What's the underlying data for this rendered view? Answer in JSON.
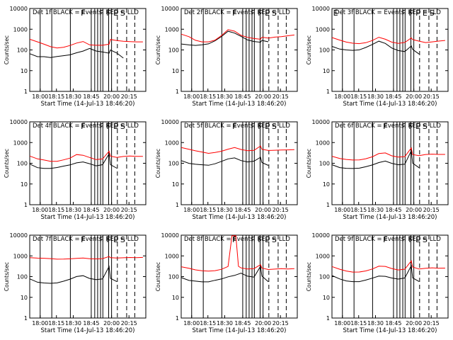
{
  "figure": {
    "ylabel": "Counts/sec",
    "start_time_label": "Start Time (14-Jul-13 18:46:20)",
    "x_ticks": [
      "18:00",
      "18:15",
      "18:30",
      "18:45",
      "20:00",
      "20:15"
    ],
    "y_ticks": [
      "1",
      "10",
      "100",
      "1000",
      "10000"
    ],
    "colors": {
      "events": "#000000",
      "lld": "#ff0000",
      "background": "#ffffff"
    }
  },
  "chart_data": [
    {
      "type": "line",
      "title": "Det 1f BLACK = Events, RED = LLD",
      "flags": [
        "F",
        "F",
        "F",
        "E",
        "S"
      ],
      "yscale": "log",
      "ylim": [
        1,
        10000
      ],
      "x_ticks": [
        "18:00",
        "18:15",
        "18:30",
        "18:45",
        "20:00",
        "20:15"
      ],
      "series": [
        {
          "color": "#000000",
          "x": [
            "17:54",
            "18:00",
            "18:05",
            "18:10",
            "18:15",
            "18:20",
            "18:25",
            "18:30",
            "18:35",
            "18:40",
            "18:45",
            "18:50",
            "18:55",
            "19:58",
            "20:03",
            "20:08"
          ],
          "values": [
            70,
            50,
            50,
            45,
            50,
            55,
            60,
            75,
            90,
            120,
            90,
            80,
            70,
            100,
            70,
            40
          ]
        },
        {
          "color": "#ff0000",
          "x": [
            "17:54",
            "18:00",
            "18:05",
            "18:10",
            "18:15",
            "18:20",
            "18:25",
            "18:30",
            "18:35",
            "18:40",
            "18:45",
            "18:50",
            "18:55",
            "19:58",
            "20:03",
            "20:08",
            "20:13",
            "20:18",
            "20:23"
          ],
          "values": [
            350,
            260,
            200,
            150,
            130,
            140,
            170,
            220,
            260,
            180,
            170,
            170,
            190,
            320,
            280,
            260,
            250,
            240,
            240
          ]
        }
      ]
    },
    {
      "type": "line",
      "title": "Det 2f BLACK = Events, RED = LLD",
      "flags": [
        "F",
        "F",
        "F",
        "E",
        "S"
      ],
      "yscale": "log",
      "ylim": [
        1,
        10000
      ],
      "x_ticks": [
        "18:00",
        "18:15",
        "18:30",
        "18:45",
        "20:00",
        "20:15"
      ],
      "series": [
        {
          "color": "#000000",
          "x": [
            "17:54",
            "18:00",
            "18:05",
            "18:10",
            "18:15",
            "18:20",
            "18:25",
            "18:30",
            "18:35",
            "18:40",
            "18:45",
            "18:50",
            "18:55",
            "19:58",
            "20:03"
          ],
          "values": [
            200,
            180,
            170,
            180,
            200,
            280,
            450,
            800,
            650,
            450,
            300,
            250,
            230,
            280,
            240
          ]
        },
        {
          "color": "#ff0000",
          "x": [
            "17:54",
            "18:00",
            "18:05",
            "18:10",
            "18:15",
            "18:20",
            "18:25",
            "18:30",
            "18:35",
            "18:40",
            "18:45",
            "18:50",
            "18:55",
            "19:58",
            "20:03",
            "20:08",
            "20:13",
            "20:18",
            "20:23"
          ],
          "values": [
            600,
            450,
            300,
            250,
            250,
            300,
            500,
            950,
            800,
            500,
            400,
            350,
            320,
            400,
            360,
            400,
            420,
            460,
            500
          ]
        }
      ]
    },
    {
      "type": "line",
      "title": "Det 3f BLACK = Events, RED = LLD",
      "flags": [
        "E",
        "F",
        "F",
        "F",
        "E",
        "S"
      ],
      "yscale": "log",
      "ylim": [
        1,
        10000
      ],
      "x_ticks": [
        "18:00",
        "18:15",
        "18:30",
        "18:45",
        "20:00",
        "20:15"
      ],
      "series": [
        {
          "color": "#000000",
          "x": [
            "17:54",
            "18:00",
            "18:05",
            "18:10",
            "18:15",
            "18:20",
            "18:25",
            "18:30",
            "18:35",
            "18:40",
            "18:45",
            "18:50",
            "18:55",
            "19:58",
            "20:03"
          ],
          "values": [
            150,
            110,
            100,
            95,
            100,
            130,
            180,
            260,
            200,
            120,
            90,
            80,
            150,
            100,
            60
          ]
        },
        {
          "color": "#ff0000",
          "x": [
            "17:54",
            "18:00",
            "18:05",
            "18:10",
            "18:15",
            "18:20",
            "18:25",
            "18:30",
            "18:35",
            "18:40",
            "18:45",
            "18:50",
            "18:55",
            "19:58",
            "20:03",
            "20:08",
            "20:13",
            "20:18",
            "20:23"
          ],
          "values": [
            400,
            300,
            240,
            210,
            200,
            220,
            280,
            400,
            320,
            230,
            200,
            220,
            360,
            300,
            250,
            240,
            260,
            280,
            300
          ]
        }
      ]
    },
    {
      "type": "line",
      "title": "Det 4f BLACK = Events, RED = LLD",
      "flags": [
        "F",
        "F",
        "F",
        "E",
        "S"
      ],
      "yscale": "log",
      "ylim": [
        1,
        10000
      ],
      "x_ticks": [
        "18:00",
        "18:15",
        "18:30",
        "18:45",
        "20:00",
        "20:15"
      ],
      "series": [
        {
          "color": "#000000",
          "x": [
            "17:54",
            "18:00",
            "18:05",
            "18:10",
            "18:15",
            "18:20",
            "18:25",
            "18:30",
            "18:35",
            "18:40",
            "18:45",
            "18:50",
            "18:55",
            "19:58",
            "20:03"
          ],
          "values": [
            90,
            60,
            55,
            55,
            60,
            70,
            80,
            100,
            110,
            90,
            80,
            90,
            300,
            90,
            60
          ]
        },
        {
          "color": "#ff0000",
          "x": [
            "17:54",
            "18:00",
            "18:05",
            "18:10",
            "18:15",
            "18:20",
            "18:25",
            "18:30",
            "18:35",
            "18:40",
            "18:45",
            "18:50",
            "18:55",
            "19:58",
            "20:03",
            "20:08",
            "20:13",
            "20:18",
            "20:23"
          ],
          "values": [
            220,
            160,
            140,
            120,
            120,
            140,
            170,
            250,
            230,
            180,
            160,
            170,
            400,
            230,
            200,
            220,
            230,
            220,
            220
          ]
        }
      ]
    },
    {
      "type": "line",
      "title": "Det 5f BLACK = Events, RED = LLD",
      "flags": [
        "F",
        "F",
        "F",
        "E",
        "S"
      ],
      "yscale": "log",
      "ylim": [
        1,
        10000
      ],
      "x_ticks": [
        "18:00",
        "18:15",
        "18:30",
        "18:45",
        "20:00",
        "20:15"
      ],
      "series": [
        {
          "color": "#000000",
          "x": [
            "17:54",
            "18:00",
            "18:05",
            "18:10",
            "18:15",
            "18:20",
            "18:25",
            "18:30",
            "18:35",
            "18:40",
            "18:45",
            "18:50",
            "18:55",
            "19:58",
            "20:03"
          ],
          "values": [
            130,
            95,
            85,
            80,
            85,
            100,
            130,
            170,
            190,
            140,
            120,
            130,
            200,
            110,
            80
          ]
        },
        {
          "color": "#ff0000",
          "x": [
            "17:54",
            "18:00",
            "18:05",
            "18:10",
            "18:15",
            "18:20",
            "18:25",
            "18:30",
            "18:35",
            "18:40",
            "18:45",
            "18:50",
            "18:55",
            "19:58",
            "20:03",
            "20:08",
            "20:13",
            "20:18",
            "20:23"
          ],
          "values": [
            550,
            450,
            380,
            330,
            320,
            350,
            400,
            500,
            600,
            480,
            420,
            430,
            700,
            480,
            420,
            430,
            440,
            440,
            450
          ]
        }
      ]
    },
    {
      "type": "line",
      "title": "Det 6f BLACK = Events, RED = LLD",
      "flags": [
        "F",
        "F",
        "F",
        "E",
        "S"
      ],
      "yscale": "log",
      "ylim": [
        1,
        10000
      ],
      "x_ticks": [
        "18:00",
        "18:15",
        "18:30",
        "18:45",
        "20:00",
        "20:15"
      ],
      "series": [
        {
          "color": "#000000",
          "x": [
            "17:54",
            "18:00",
            "18:05",
            "18:10",
            "18:15",
            "18:20",
            "18:25",
            "18:30",
            "18:35",
            "18:40",
            "18:45",
            "18:50",
            "18:55",
            "19:58",
            "20:03"
          ],
          "values": [
            90,
            65,
            60,
            58,
            60,
            70,
            85,
            110,
            130,
            100,
            85,
            90,
            400,
            100,
            60
          ]
        },
        {
          "color": "#ff0000",
          "x": [
            "17:54",
            "18:00",
            "18:05",
            "18:10",
            "18:15",
            "18:20",
            "18:25",
            "18:30",
            "18:35",
            "18:40",
            "18:45",
            "18:50",
            "18:55",
            "19:58",
            "20:03",
            "20:08",
            "20:13",
            "20:18",
            "20:23"
          ],
          "values": [
            230,
            180,
            160,
            150,
            150,
            170,
            210,
            300,
            320,
            230,
            200,
            210,
            550,
            260,
            230,
            260,
            270,
            260,
            260
          ]
        }
      ]
    },
    {
      "type": "line",
      "title": "Det 7f BLACK = Events, RED = LLD",
      "flags": [
        "F",
        "F",
        "F",
        "E",
        "S"
      ],
      "yscale": "log",
      "ylim": [
        1,
        10000
      ],
      "x_ticks": [
        "18:00",
        "18:15",
        "18:30",
        "18:45",
        "20:00",
        "20:15"
      ],
      "series": [
        {
          "color": "#000000",
          "x": [
            "17:54",
            "18:00",
            "18:05",
            "18:10",
            "18:15",
            "18:20",
            "18:25",
            "18:30",
            "18:35",
            "18:40",
            "18:45",
            "18:50",
            "18:55",
            "19:58",
            "20:03"
          ],
          "values": [
            80,
            55,
            50,
            48,
            50,
            60,
            75,
            100,
            110,
            80,
            70,
            75,
            300,
            80,
            55
          ]
        },
        {
          "color": "#ff0000",
          "x": [
            "17:54",
            "18:00",
            "18:05",
            "18:10",
            "18:15",
            "18:20",
            "18:25",
            "18:30",
            "18:35",
            "18:40",
            "18:45",
            "18:50",
            "18:55",
            "19:58",
            "20:03",
            "20:08",
            "20:13",
            "20:18",
            "20:23"
          ],
          "values": [
            850,
            800,
            780,
            750,
            700,
            700,
            720,
            750,
            780,
            720,
            700,
            720,
            900,
            800,
            760,
            780,
            800,
            780,
            800
          ]
        }
      ]
    },
    {
      "type": "line",
      "title": "Det 8f BLACK = Events, RED = LLD",
      "flags": [
        "F",
        "F",
        "F",
        "E",
        "S"
      ],
      "yscale": "log",
      "ylim": [
        1,
        10000
      ],
      "x_ticks": [
        "18:00",
        "18:15",
        "18:30",
        "18:45",
        "20:00",
        "20:15"
      ],
      "series": [
        {
          "color": "#000000",
          "x": [
            "17:54",
            "18:00",
            "18:05",
            "18:10",
            "18:15",
            "18:20",
            "18:25",
            "18:30",
            "18:35",
            "18:40",
            "18:45",
            "18:50",
            "18:55",
            "19:58",
            "20:03"
          ],
          "values": [
            90,
            65,
            60,
            55,
            55,
            65,
            75,
            95,
            110,
            140,
            100,
            90,
            300,
            100,
            60
          ]
        },
        {
          "color": "#ff0000",
          "x": [
            "17:54",
            "18:00",
            "18:05",
            "18:10",
            "18:15",
            "18:20",
            "18:25",
            "18:30",
            "18:33",
            "18:36",
            "18:38",
            "18:40",
            "18:45",
            "18:50",
            "18:55",
            "19:58",
            "20:03",
            "20:08",
            "20:13",
            "20:18",
            "20:23"
          ],
          "values": [
            300,
            250,
            210,
            190,
            180,
            190,
            220,
            300,
            9000,
            9000,
            300,
            250,
            220,
            230,
            400,
            270,
            230,
            240,
            250,
            240,
            250
          ]
        }
      ]
    },
    {
      "type": "line",
      "title": "Det 9f BLACK = Events, RED = LLD",
      "flags": [
        "F",
        "F",
        "F",
        "E",
        "S"
      ],
      "yscale": "log",
      "ylim": [
        1,
        10000
      ],
      "x_ticks": [
        "18:00",
        "18:15",
        "18:30",
        "18:45",
        "20:00",
        "20:15"
      ],
      "series": [
        {
          "color": "#000000",
          "x": [
            "17:54",
            "18:00",
            "18:05",
            "18:10",
            "18:15",
            "18:20",
            "18:25",
            "18:30",
            "18:35",
            "18:40",
            "18:45",
            "18:50",
            "18:55",
            "19:58",
            "20:03"
          ],
          "values": [
            110,
            75,
            60,
            55,
            55,
            65,
            80,
            100,
            110,
            90,
            80,
            90,
            350,
            90,
            60
          ]
        },
        {
          "color": "#ff0000",
          "x": [
            "17:54",
            "18:00",
            "18:05",
            "18:10",
            "18:15",
            "18:20",
            "18:25",
            "18:30",
            "18:35",
            "18:40",
            "18:45",
            "18:50",
            "18:55",
            "19:58",
            "20:03",
            "20:08",
            "20:13",
            "20:18",
            "20:23"
          ],
          "values": [
            300,
            220,
            180,
            160,
            160,
            180,
            220,
            300,
            330,
            260,
            220,
            240,
            600,
            300,
            240,
            260,
            270,
            260,
            260
          ]
        }
      ]
    }
  ]
}
